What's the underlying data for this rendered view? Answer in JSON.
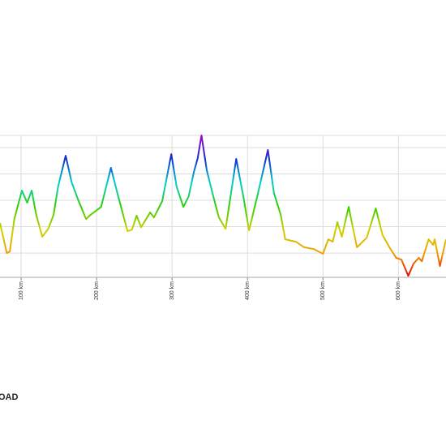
{
  "chart_data": {
    "type": "line",
    "x": [
      72,
      81,
      85,
      91,
      101,
      108,
      114,
      120,
      128,
      136,
      143,
      149,
      159,
      167,
      175,
      186,
      192,
      206,
      219,
      228,
      241,
      247,
      253,
      259,
      271,
      276,
      287,
      299,
      306,
      315,
      322,
      329,
      334,
      339,
      346,
      354,
      362,
      371,
      385,
      395,
      402,
      414,
      427,
      435,
      444,
      450,
      464,
      475,
      488,
      500,
      507,
      513,
      519,
      525,
      534,
      545,
      558,
      570,
      579,
      588,
      597,
      604,
      613,
      620,
      627,
      631,
      640,
      646,
      648,
      655,
      663
    ],
    "values": [
      214,
      100,
      106,
      229,
      337,
      291,
      337,
      245,
      162,
      192,
      245,
      352,
      469,
      368,
      306,
      229,
      245,
      275,
      423,
      322,
      183,
      189,
      242,
      198,
      254,
      235,
      297,
      475,
      352,
      275,
      315,
      408,
      460,
      546,
      414,
      322,
      235,
      192,
      457,
      306,
      186,
      328,
      491,
      328,
      245,
      152,
      143,
      122,
      115,
      97,
      152,
      143,
      217,
      162,
      275,
      122,
      158,
      269,
      168,
      122,
      82,
      75,
      14,
      60,
      82,
      69,
      152,
      131,
      152,
      51,
      152
    ],
    "xlim": [
      72,
      663
    ],
    "ylim": [
      8,
      546
    ],
    "xticks": [
      {
        "value": 100,
        "label": "100 km"
      },
      {
        "value": 200,
        "label": "200 km"
      },
      {
        "value": 300,
        "label": "300 km"
      },
      {
        "value": 400,
        "label": "400 km"
      },
      {
        "value": 500,
        "label": "500 km"
      },
      {
        "value": 600,
        "label": "600 km"
      }
    ],
    "yticks": [
      100,
      200,
      300,
      400,
      500
    ],
    "grid": true,
    "colors": [
      "#e00000",
      "#f0a000",
      "#d0d000",
      "#30d000",
      "#00d0d0",
      "#1030d0",
      "#a000d0"
    ],
    "logo": "OAD"
  }
}
